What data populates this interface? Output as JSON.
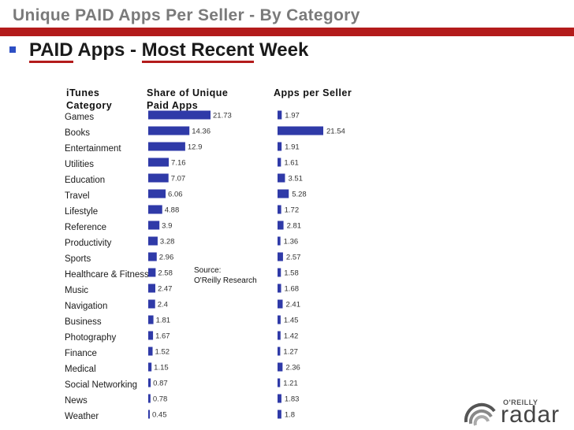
{
  "slide": {
    "title": "Unique PAID Apps Per Seller - By Category",
    "subtitle_part1": "PAID",
    "subtitle_part2": " Apps - ",
    "subtitle_part3": "Most Recent",
    "subtitle_part4": " Week",
    "accent_color": "#b31b1b",
    "bullet_color": "#2d4fc4"
  },
  "columns": {
    "category_line1": "iTunes",
    "category_line2": "Category",
    "share_line1": "Share of Unique",
    "share_line2": "Paid Apps",
    "per_seller": "Apps per Seller"
  },
  "source": {
    "line1": "Source:",
    "line2": "O'Reilly Research"
  },
  "logo": {
    "small_text": "O'REILLY",
    "big_text": "radar"
  },
  "chart_data": {
    "type": "bar",
    "orientation": "horizontal",
    "title": "PAID Apps - Most Recent Week",
    "bar_color": "#2f3aa8",
    "categories": [
      "Games",
      "Books",
      "Entertainment",
      "Utilities",
      "Education",
      "Travel",
      "Lifestyle",
      "Reference",
      "Productivity",
      "Sports",
      "Healthcare & Fitness",
      "Music",
      "Navigation",
      "Business",
      "Photography",
      "Finance",
      "Medical",
      "Social Networking",
      "News",
      "Weather"
    ],
    "series": [
      {
        "name": "Share of Unique Paid Apps",
        "labels": [
          "21.73",
          "14.36",
          "12.9",
          "7.16",
          "7.07",
          "6.06",
          "4.88",
          "3.9",
          "3.28",
          "2.96",
          "2.58",
          "2.47",
          "2.4",
          "1.81",
          "1.67",
          "1.52",
          "1.15",
          "0.87",
          "0.78",
          "0.45"
        ],
        "values": [
          21.73,
          14.36,
          12.9,
          7.16,
          7.07,
          6.06,
          4.88,
          3.9,
          3.28,
          2.96,
          2.58,
          2.47,
          2.4,
          1.81,
          1.67,
          1.52,
          1.15,
          0.87,
          0.78,
          0.45
        ]
      },
      {
        "name": "Apps per Seller",
        "labels": [
          "1.97",
          "21.54",
          "1.91",
          "1.61",
          "3.51",
          "5.28",
          "1.72",
          "2.81",
          "1.36",
          "2.57",
          "1.58",
          "1.68",
          "2.41",
          "1.45",
          "1.42",
          "1.27",
          "2.36",
          "1.21",
          "1.83",
          "1.8"
        ],
        "values": [
          1.97,
          21.54,
          1.91,
          1.61,
          3.51,
          5.28,
          1.72,
          2.81,
          1.36,
          2.57,
          1.58,
          1.68,
          2.41,
          1.45,
          1.42,
          1.27,
          2.36,
          1.21,
          1.83,
          1.8
        ]
      }
    ]
  }
}
